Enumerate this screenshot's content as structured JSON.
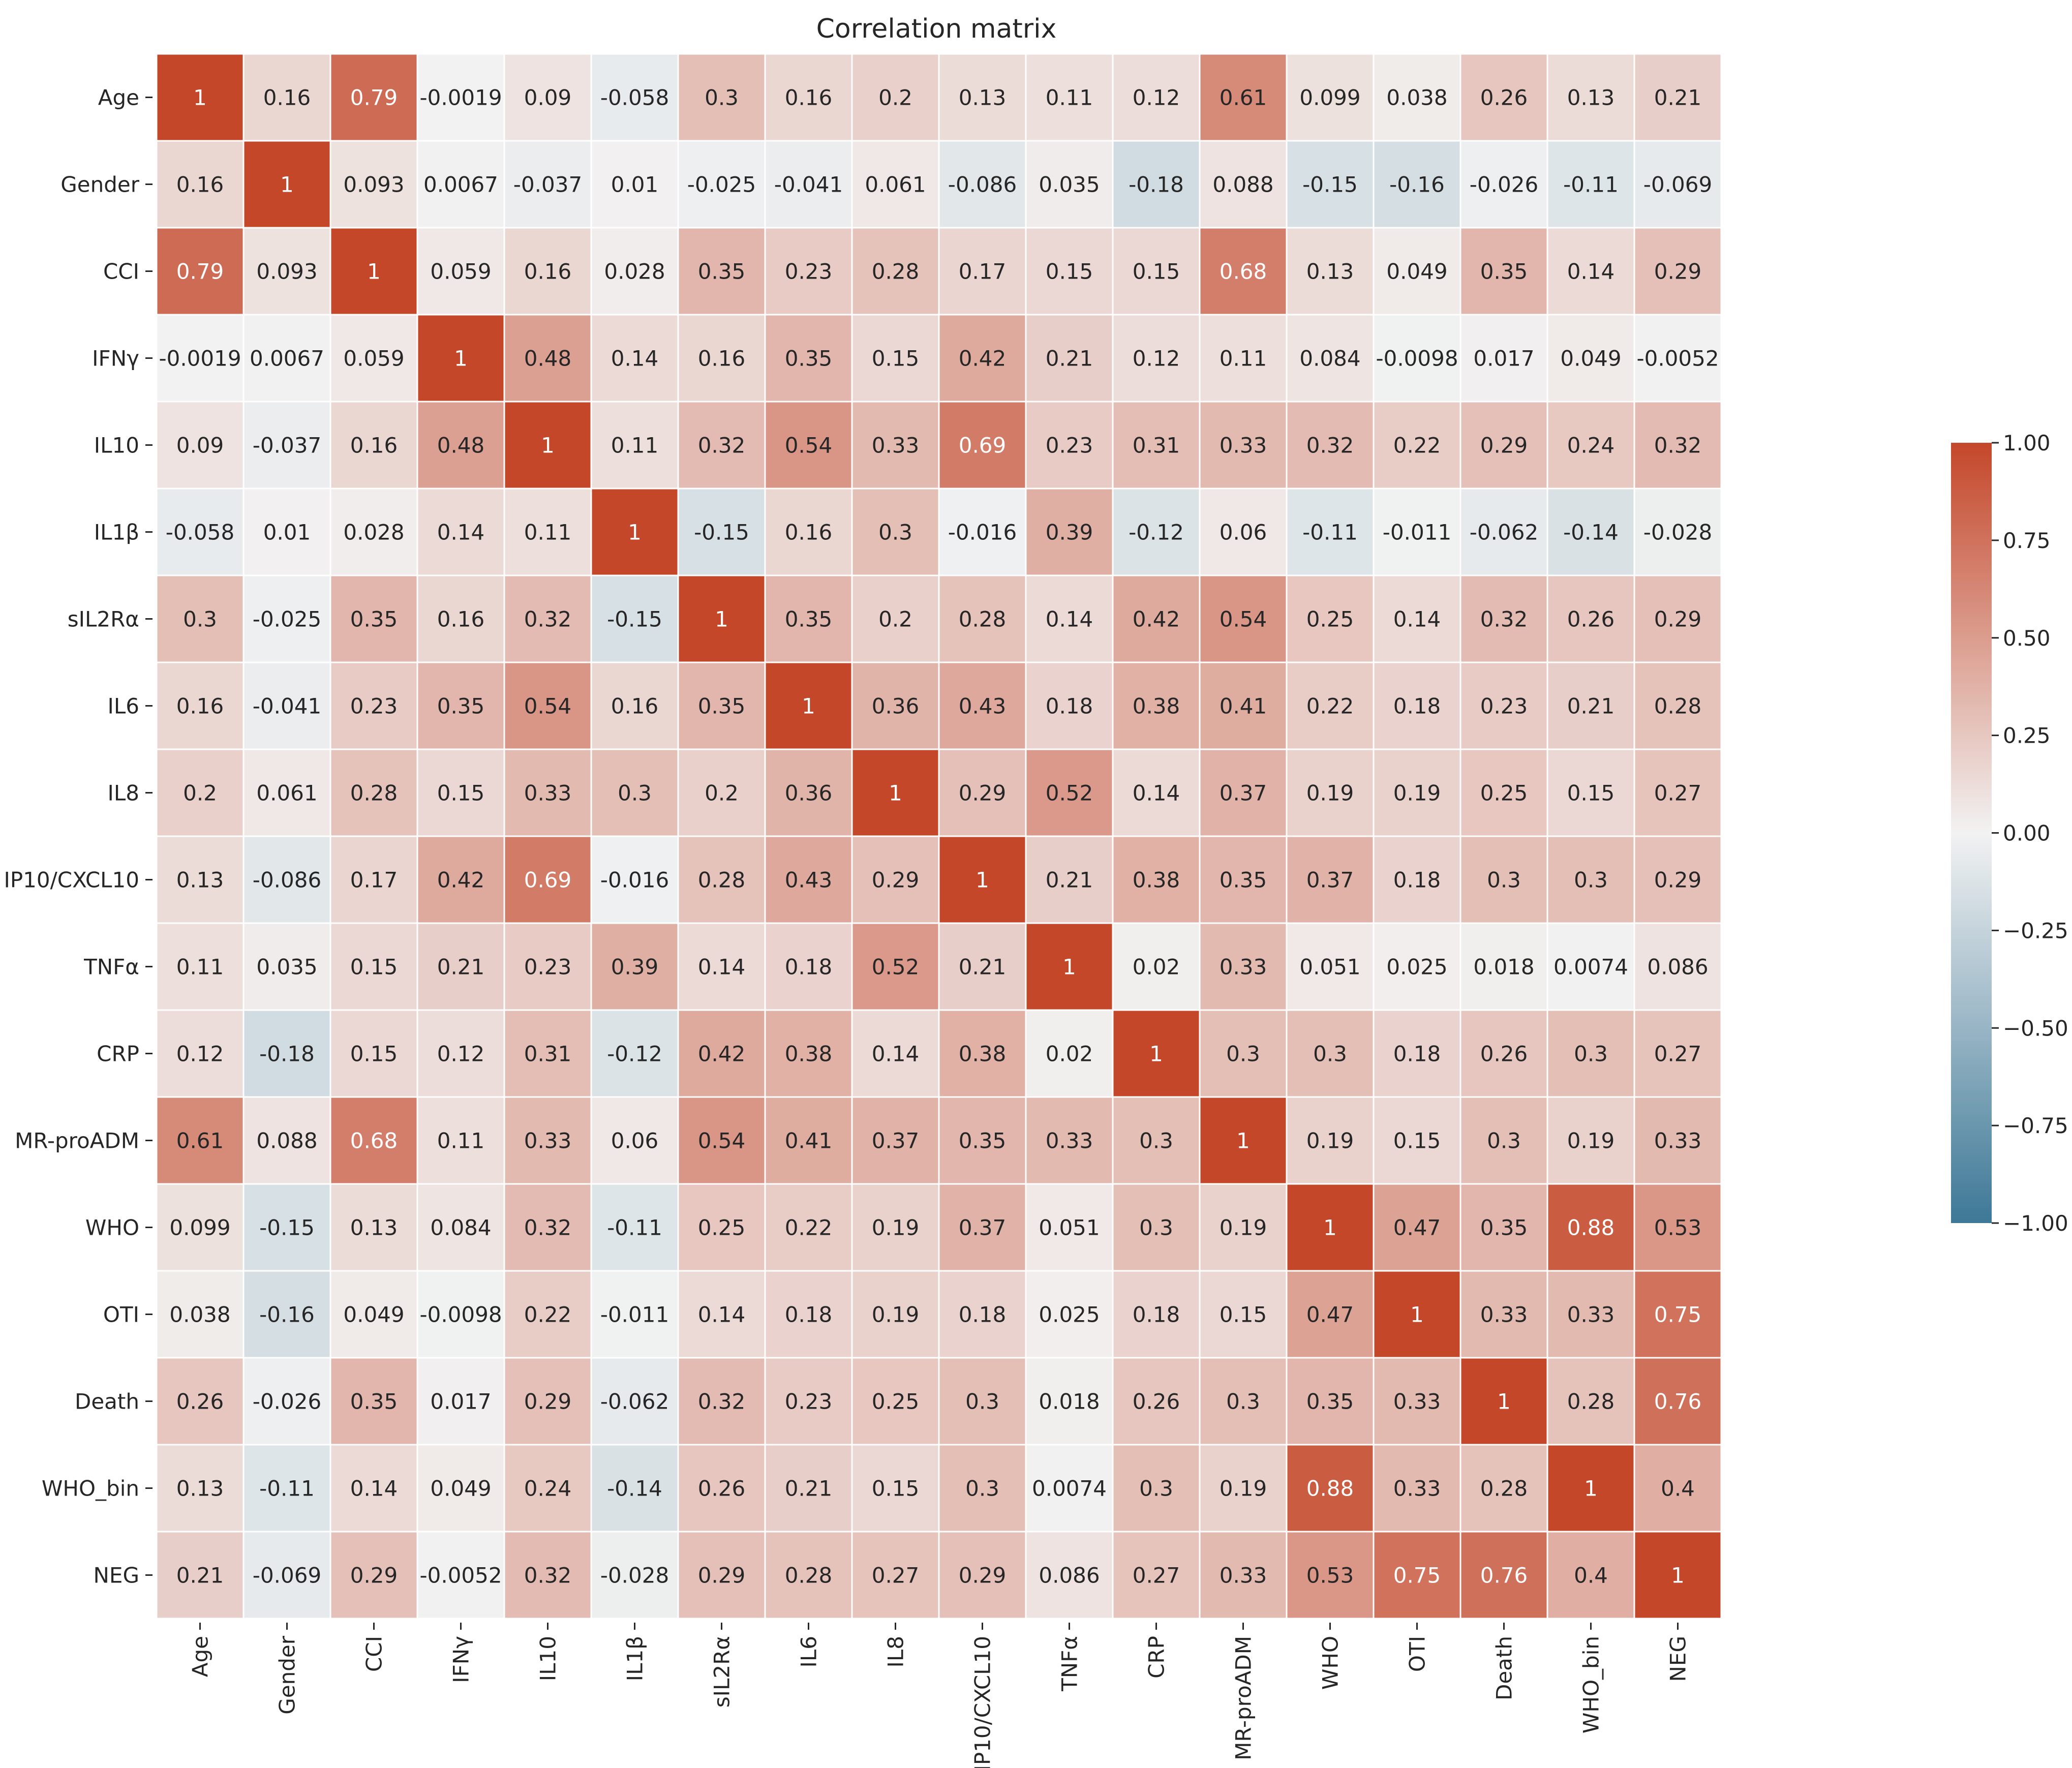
{
  "chart_data": {
    "type": "heatmap",
    "title": "Correlation matrix",
    "labels": [
      "Age",
      "Gender",
      "CCI",
      "IFNγ",
      "IL10",
      "IL1β",
      "sIL2Rα",
      "IL6",
      "IL8",
      "IP10/CXCL10",
      "TNFα",
      "CRP",
      "MR-proADM",
      "WHO",
      "OTI",
      "Death",
      "WHO_bin",
      "NEG"
    ],
    "matrix": [
      [
        "1",
        "0.16",
        "0.79",
        "-0.0019",
        "0.09",
        "-0.058",
        "0.3",
        "0.16",
        "0.2",
        "0.13",
        "0.11",
        "0.12",
        "0.61",
        "0.099",
        "0.038",
        "0.26",
        "0.13",
        "0.21"
      ],
      [
        "0.16",
        "1",
        "0.093",
        "0.0067",
        "-0.037",
        "0.01",
        "-0.025",
        "-0.041",
        "0.061",
        "-0.086",
        "0.035",
        "-0.18",
        "0.088",
        "-0.15",
        "-0.16",
        "-0.026",
        "-0.11",
        "-0.069"
      ],
      [
        "0.79",
        "0.093",
        "1",
        "0.059",
        "0.16",
        "0.028",
        "0.35",
        "0.23",
        "0.28",
        "0.17",
        "0.15",
        "0.15",
        "0.68",
        "0.13",
        "0.049",
        "0.35",
        "0.14",
        "0.29"
      ],
      [
        "-0.0019",
        "0.0067",
        "0.059",
        "1",
        "0.48",
        "0.14",
        "0.16",
        "0.35",
        "0.15",
        "0.42",
        "0.21",
        "0.12",
        "0.11",
        "0.084",
        "-0.0098",
        "0.017",
        "0.049",
        "-0.0052"
      ],
      [
        "0.09",
        "-0.037",
        "0.16",
        "0.48",
        "1",
        "0.11",
        "0.32",
        "0.54",
        "0.33",
        "0.69",
        "0.23",
        "0.31",
        "0.33",
        "0.32",
        "0.22",
        "0.29",
        "0.24",
        "0.32"
      ],
      [
        "-0.058",
        "0.01",
        "0.028",
        "0.14",
        "0.11",
        "1",
        "-0.15",
        "0.16",
        "0.3",
        "-0.016",
        "0.39",
        "-0.12",
        "0.06",
        "-0.11",
        "-0.011",
        "-0.062",
        "-0.14",
        "-0.028"
      ],
      [
        "0.3",
        "-0.025",
        "0.35",
        "0.16",
        "0.32",
        "-0.15",
        "1",
        "0.35",
        "0.2",
        "0.28",
        "0.14",
        "0.42",
        "0.54",
        "0.25",
        "0.14",
        "0.32",
        "0.26",
        "0.29"
      ],
      [
        "0.16",
        "-0.041",
        "0.23",
        "0.35",
        "0.54",
        "0.16",
        "0.35",
        "1",
        "0.36",
        "0.43",
        "0.18",
        "0.38",
        "0.41",
        "0.22",
        "0.18",
        "0.23",
        "0.21",
        "0.28"
      ],
      [
        "0.2",
        "0.061",
        "0.28",
        "0.15",
        "0.33",
        "0.3",
        "0.2",
        "0.36",
        "1",
        "0.29",
        "0.52",
        "0.14",
        "0.37",
        "0.19",
        "0.19",
        "0.25",
        "0.15",
        "0.27"
      ],
      [
        "0.13",
        "-0.086",
        "0.17",
        "0.42",
        "0.69",
        "-0.016",
        "0.28",
        "0.43",
        "0.29",
        "1",
        "0.21",
        "0.38",
        "0.35",
        "0.37",
        "0.18",
        "0.3",
        "0.3",
        "0.29"
      ],
      [
        "0.11",
        "0.035",
        "0.15",
        "0.21",
        "0.23",
        "0.39",
        "0.14",
        "0.18",
        "0.52",
        "0.21",
        "1",
        "0.02",
        "0.33",
        "0.051",
        "0.025",
        "0.018",
        "0.0074",
        "0.086"
      ],
      [
        "0.12",
        "-0.18",
        "0.15",
        "0.12",
        "0.31",
        "-0.12",
        "0.42",
        "0.38",
        "0.14",
        "0.38",
        "0.02",
        "1",
        "0.3",
        "0.3",
        "0.18",
        "0.26",
        "0.3",
        "0.27"
      ],
      [
        "0.61",
        "0.088",
        "0.68",
        "0.11",
        "0.33",
        "0.06",
        "0.54",
        "0.41",
        "0.37",
        "0.35",
        "0.33",
        "0.3",
        "1",
        "0.19",
        "0.15",
        "0.3",
        "0.19",
        "0.33"
      ],
      [
        "0.099",
        "-0.15",
        "0.13",
        "0.084",
        "0.32",
        "-0.11",
        "0.25",
        "0.22",
        "0.19",
        "0.37",
        "0.051",
        "0.3",
        "0.19",
        "1",
        "0.47",
        "0.35",
        "0.88",
        "0.53"
      ],
      [
        "0.038",
        "-0.16",
        "0.049",
        "-0.0098",
        "0.22",
        "-0.011",
        "0.14",
        "0.18",
        "0.19",
        "0.18",
        "0.025",
        "0.18",
        "0.15",
        "0.47",
        "1",
        "0.33",
        "0.33",
        "0.75"
      ],
      [
        "0.26",
        "-0.026",
        "0.35",
        "0.017",
        "0.29",
        "-0.062",
        "0.32",
        "0.23",
        "0.25",
        "0.3",
        "0.018",
        "0.26",
        "0.3",
        "0.35",
        "0.33",
        "1",
        "0.28",
        "0.76"
      ],
      [
        "0.13",
        "-0.11",
        "0.14",
        "0.049",
        "0.24",
        "-0.14",
        "0.26",
        "0.21",
        "0.15",
        "0.3",
        "0.0074",
        "0.3",
        "0.19",
        "0.88",
        "0.33",
        "0.28",
        "1",
        "0.4"
      ],
      [
        "0.21",
        "-0.069",
        "0.29",
        "-0.0052",
        "0.32",
        "-0.028",
        "0.29",
        "0.28",
        "0.27",
        "0.29",
        "0.086",
        "0.27",
        "0.33",
        "0.53",
        "0.75",
        "0.76",
        "0.4",
        "1"
      ]
    ],
    "colorbar": {
      "range": [
        -1.0,
        1.0
      ],
      "ticks": [
        "1.00",
        "0.75",
        "0.50",
        "0.25",
        "0.00",
        "−0.25",
        "−0.50",
        "−0.75",
        "−1.00"
      ],
      "colors": {
        "low": "#3d7897",
        "mid": "#f2f2f2",
        "high": "#c4472a"
      }
    }
  }
}
